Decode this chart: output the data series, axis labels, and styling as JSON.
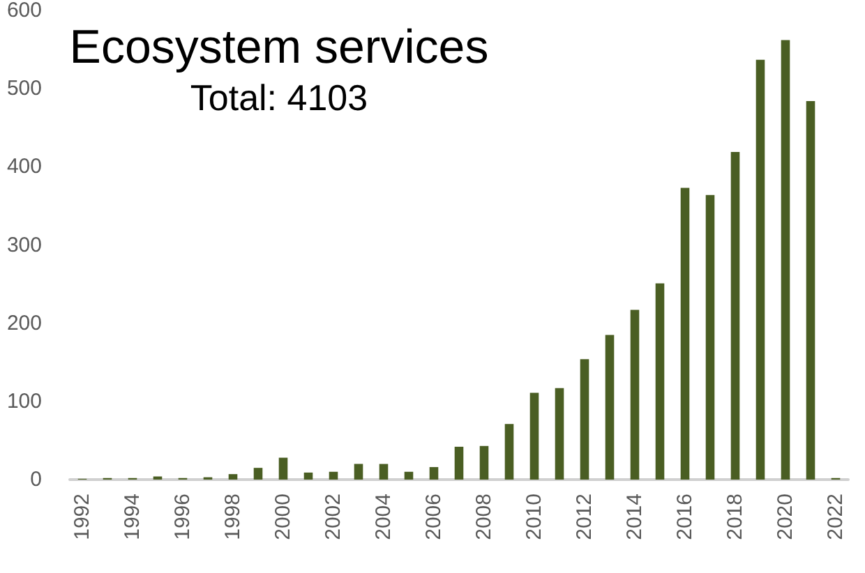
{
  "chart_data": {
    "type": "bar",
    "title": "Ecosystem services",
    "subtitle": "Total: 4103",
    "categories": [
      "1992",
      null,
      "1994",
      null,
      "1996",
      null,
      "1998",
      null,
      "2000",
      null,
      "2002",
      null,
      "2004",
      null,
      "2006",
      null,
      "2008",
      null,
      "2010",
      null,
      "2012",
      null,
      "2014",
      null,
      "2016",
      null,
      "2018",
      null,
      "2020",
      null,
      "2022"
    ],
    "values": [
      1,
      2,
      2,
      4,
      2,
      3,
      7,
      15,
      28,
      9,
      10,
      20,
      20,
      10,
      16,
      42,
      43,
      71,
      111,
      117,
      154,
      185,
      217,
      251,
      373,
      364,
      419,
      537,
      562,
      484,
      2
    ],
    "color": "#4a5e23",
    "ylim": [
      0,
      600
    ],
    "yticks": [
      0,
      100,
      200,
      300,
      400,
      500,
      600
    ],
    "grid": false
  }
}
